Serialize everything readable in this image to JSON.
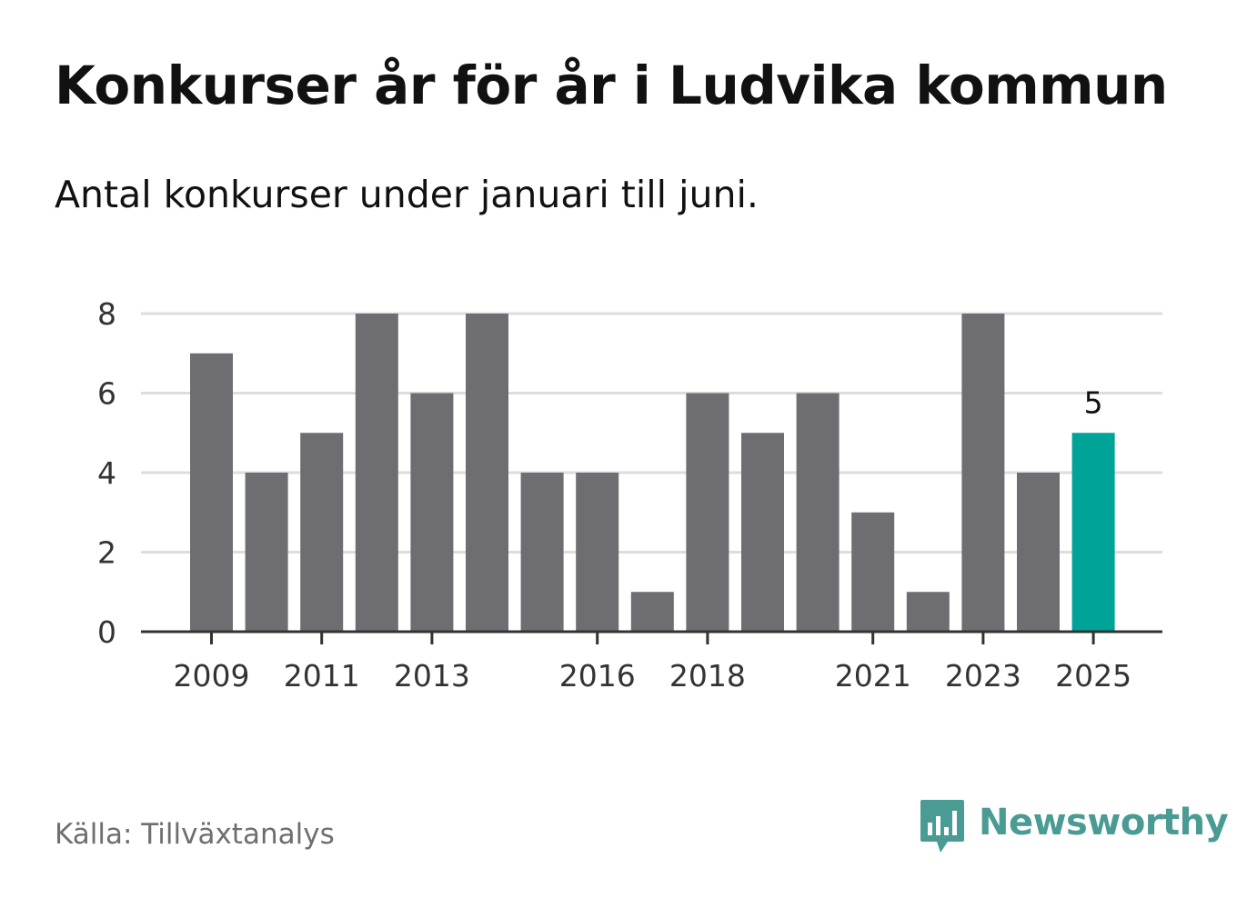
{
  "header": {
    "title": "Konkurser år för år i Ludvika kommun",
    "subtitle": "Antal konkurser under januari till juni."
  },
  "footer": {
    "source": "Källa: Tillväxtanalys",
    "brand": "Newsworthy",
    "brand_icon": "newsworthy-logo-icon"
  },
  "colors": {
    "bar": "#6e6d72",
    "highlight": "#00a398",
    "grid": "#dddddd",
    "axis": "#333333",
    "text": "#333333",
    "brand": "#4a9b93"
  },
  "chart_data": {
    "type": "bar",
    "title": "",
    "xlabel": "",
    "ylabel": "",
    "categories": [
      "2009",
      "2010",
      "2011",
      "2012",
      "2013",
      "2014",
      "2015",
      "2016",
      "2017",
      "2018",
      "2019",
      "2020",
      "2021",
      "2022",
      "2023",
      "2024",
      "2025"
    ],
    "x_tick_labels": [
      "2009",
      "2011",
      "2013",
      "2016",
      "2018",
      "2021",
      "2023",
      "2025"
    ],
    "values": [
      7,
      4,
      5,
      8,
      6,
      8,
      4,
      4,
      1,
      6,
      5,
      6,
      3,
      1,
      8,
      4,
      5
    ],
    "ylim": [
      0,
      8
    ],
    "yticks": [
      0,
      2,
      4,
      6,
      8
    ],
    "grid": true,
    "highlight_category": "2025",
    "data_labels": [
      {
        "category": "2025",
        "text": "5"
      }
    ]
  }
}
